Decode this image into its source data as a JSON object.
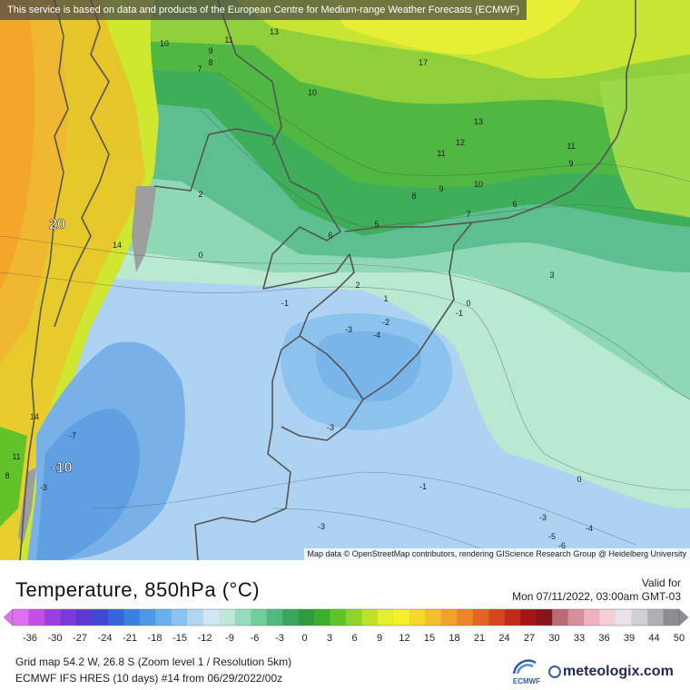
{
  "banner": {
    "text": "This service is based on data and products of the European Centre for Medium-range Weather Forecasts (ECMWF)"
  },
  "map": {
    "attribution": "Map data © OpenStreetMap contributors, rendering GIScience Research Group @ Heidelberg University",
    "contour_labels": [
      {
        "text": "13"
      },
      {
        "text": "17"
      },
      {
        "text": "10"
      },
      {
        "text": "9"
      },
      {
        "text": "11"
      },
      {
        "text": "8"
      },
      {
        "text": "7"
      },
      {
        "text": "10"
      },
      {
        "text": "13"
      },
      {
        "text": "12"
      },
      {
        "text": "11"
      },
      {
        "text": "11"
      },
      {
        "text": "9"
      },
      {
        "text": "8"
      },
      {
        "text": "9"
      },
      {
        "text": "10"
      },
      {
        "text": "6"
      },
      {
        "text": "7"
      },
      {
        "text": "5"
      },
      {
        "text": "6"
      },
      {
        "text": "2"
      },
      {
        "text": "0"
      },
      {
        "text": "14"
      },
      {
        "text": "3"
      },
      {
        "text": "2"
      },
      {
        "text": "1"
      },
      {
        "text": "0"
      },
      {
        "text": "-1"
      },
      {
        "text": "-1"
      },
      {
        "text": "-2"
      },
      {
        "text": "-3"
      },
      {
        "text": "-4"
      },
      {
        "text": "-3"
      },
      {
        "text": "14"
      },
      {
        "text": "-7"
      },
      {
        "text": "11"
      },
      {
        "text": "8"
      },
      {
        "text": "-3"
      },
      {
        "text": "-1"
      },
      {
        "text": "0"
      },
      {
        "text": "-3"
      },
      {
        "text": "-3"
      },
      {
        "text": "-4"
      },
      {
        "text": "-5"
      },
      {
        "text": "-6"
      }
    ],
    "highlight_labels": [
      {
        "text": "20"
      },
      {
        "text": "-10"
      }
    ]
  },
  "header": {
    "title": "Temperature, 850hPa (°C)",
    "valid_label": "Valid for",
    "valid_value": "Mon 07/11/2022, 03:00am GMT-03"
  },
  "legend": {
    "ticks": [
      "-36",
      "-30",
      "-27",
      "-24",
      "-21",
      "-18",
      "-15",
      "-12",
      "-9",
      "-6",
      "-3",
      "0",
      "3",
      "6",
      "9",
      "12",
      "15",
      "18",
      "21",
      "24",
      "27",
      "30",
      "33",
      "36",
      "39",
      "44",
      "50"
    ],
    "colors": [
      "#e070f0",
      "#c24fe8",
      "#9a40e0",
      "#7a3ad8",
      "#5a3ad0",
      "#3f48d0",
      "#3565d8",
      "#3a80e0",
      "#4d98e6",
      "#6aaeec",
      "#8cc2f0",
      "#b0d6f4",
      "#d3e6f8",
      "#bfe8d6",
      "#98dcbd",
      "#72cca0",
      "#52b880",
      "#3aa55c",
      "#2f9a3c",
      "#3bad2f",
      "#62c22a",
      "#8fd32b",
      "#bce22d",
      "#e3ee2f",
      "#f8ef2e",
      "#f7d72c",
      "#f4bd2b",
      "#f0a22b",
      "#ec8528",
      "#e26525",
      "#d44720",
      "#c12a1a",
      "#a21515",
      "#861317",
      "#b86a75",
      "#d48f9a",
      "#ebb3bd",
      "#f4d0d6",
      "#e9e4e8",
      "#cfcfd4",
      "#b0b0b4",
      "#8e8e92"
    ]
  },
  "info": {
    "line1": "Grid map 54.2 W, 26.8 S (Zoom level 1 / Resolution 5km)",
    "line2": "ECMWF IFS HRES (10 days) #14 from 06/29/2022/00z"
  },
  "branding": {
    "ecmwf": "ECMWF",
    "meteologix": "meteologix.com"
  }
}
